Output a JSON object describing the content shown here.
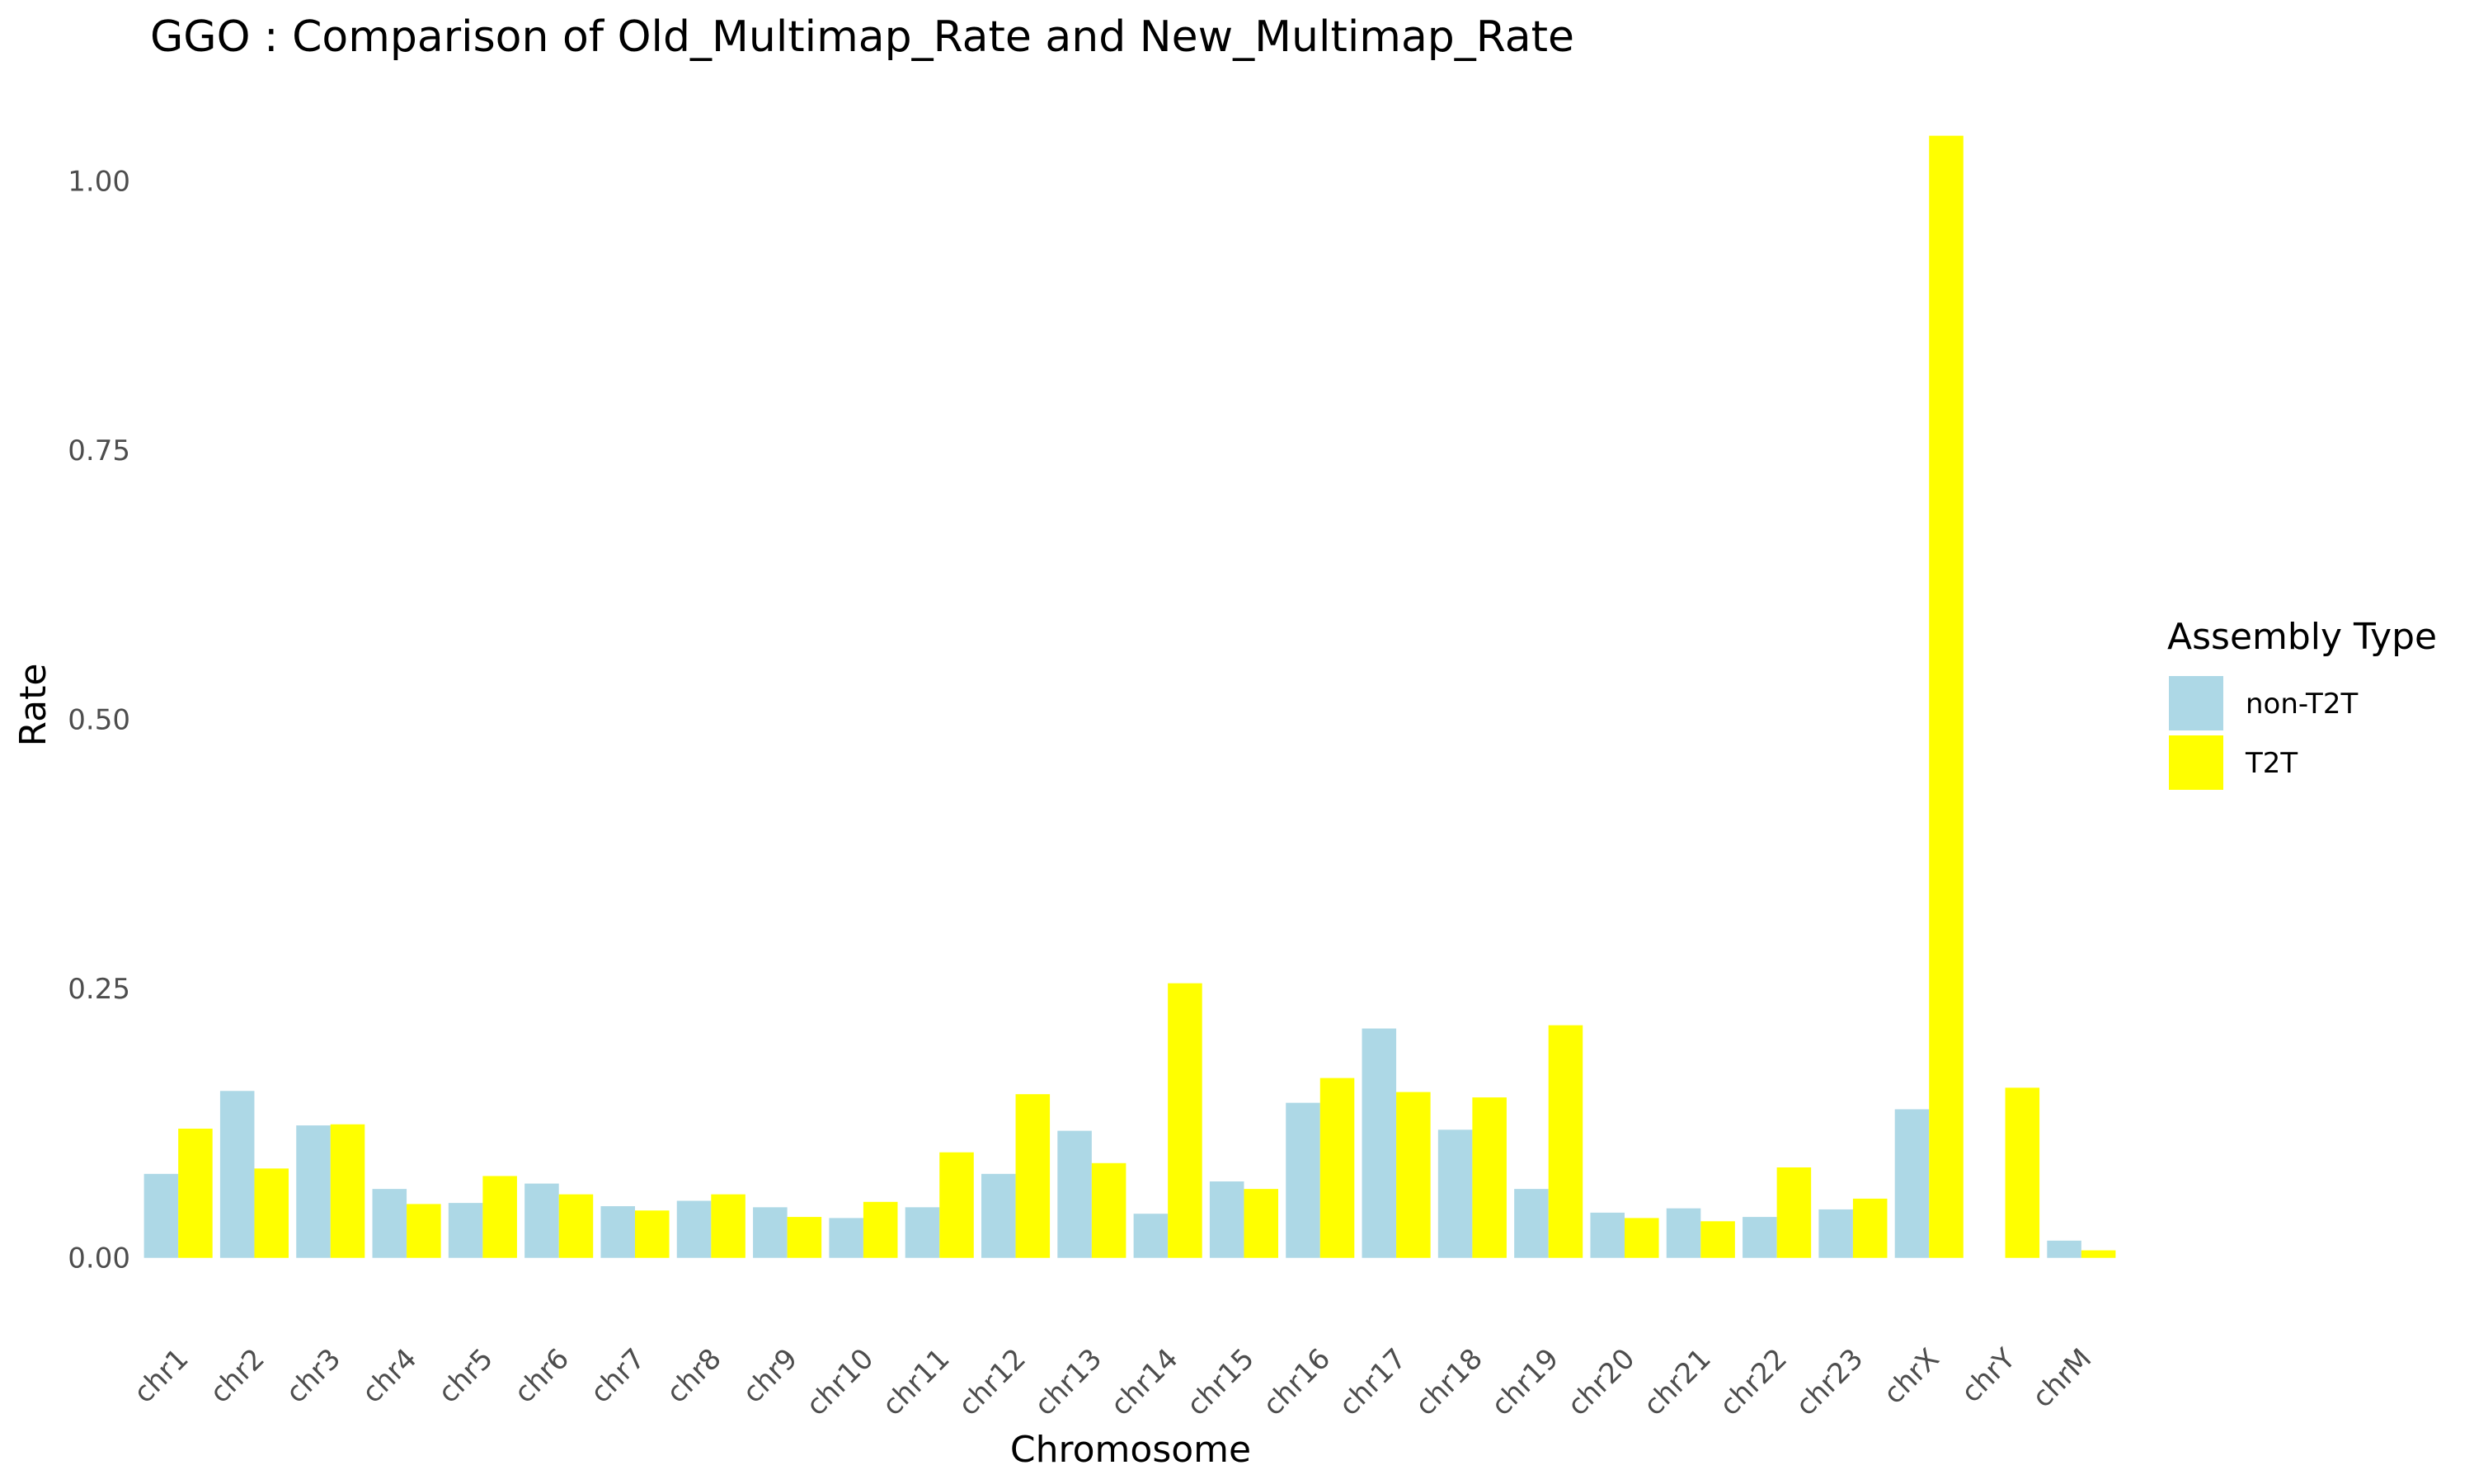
{
  "chart_data": {
    "type": "bar",
    "title": "GGO : Comparison of Old_Multimap_Rate and New_Multimap_Rate",
    "xlabel": "Chromosome",
    "ylabel": "Rate",
    "ylim": [
      -0.076,
      1.08
    ],
    "yticks": [
      "0.00",
      "0.25",
      "0.50",
      "0.75",
      "1.00"
    ],
    "ytick_values": [
      0,
      0.25,
      0.5,
      0.75,
      1.0
    ],
    "grid": false,
    "legend": {
      "title": "Assembly Type",
      "position": "right"
    },
    "categories": [
      "chr1",
      "chr2",
      "chr3",
      "chr4",
      "chr5",
      "chr6",
      "chr7",
      "chr8",
      "chr9",
      "chr10",
      "chr11",
      "chr12",
      "chr13",
      "chr14",
      "chr15",
      "chr16",
      "chr17",
      "chr18",
      "chr19",
      "chr20",
      "chr21",
      "chr22",
      "chr23",
      "chrX",
      "chrY",
      "chrM"
    ],
    "series": [
      {
        "name": "non-T2T",
        "color": "#add8e6",
        "values": [
          0.078,
          0.155,
          0.123,
          0.064,
          0.051,
          0.069,
          0.048,
          0.053,
          0.047,
          0.037,
          0.047,
          0.078,
          0.118,
          0.041,
          0.071,
          0.144,
          0.213,
          0.119,
          0.064,
          0.042,
          0.046,
          0.038,
          0.045,
          0.138,
          null,
          0.016
        ]
      },
      {
        "name": "T2T",
        "color": "#ffff00",
        "values": [
          0.12,
          0.083,
          0.124,
          0.05,
          0.076,
          0.059,
          0.044,
          0.059,
          0.038,
          0.052,
          0.098,
          0.152,
          0.088,
          0.255,
          0.064,
          0.167,
          0.154,
          0.149,
          0.216,
          0.037,
          0.034,
          0.084,
          0.055,
          1.042,
          0.158,
          0.007
        ]
      }
    ]
  }
}
